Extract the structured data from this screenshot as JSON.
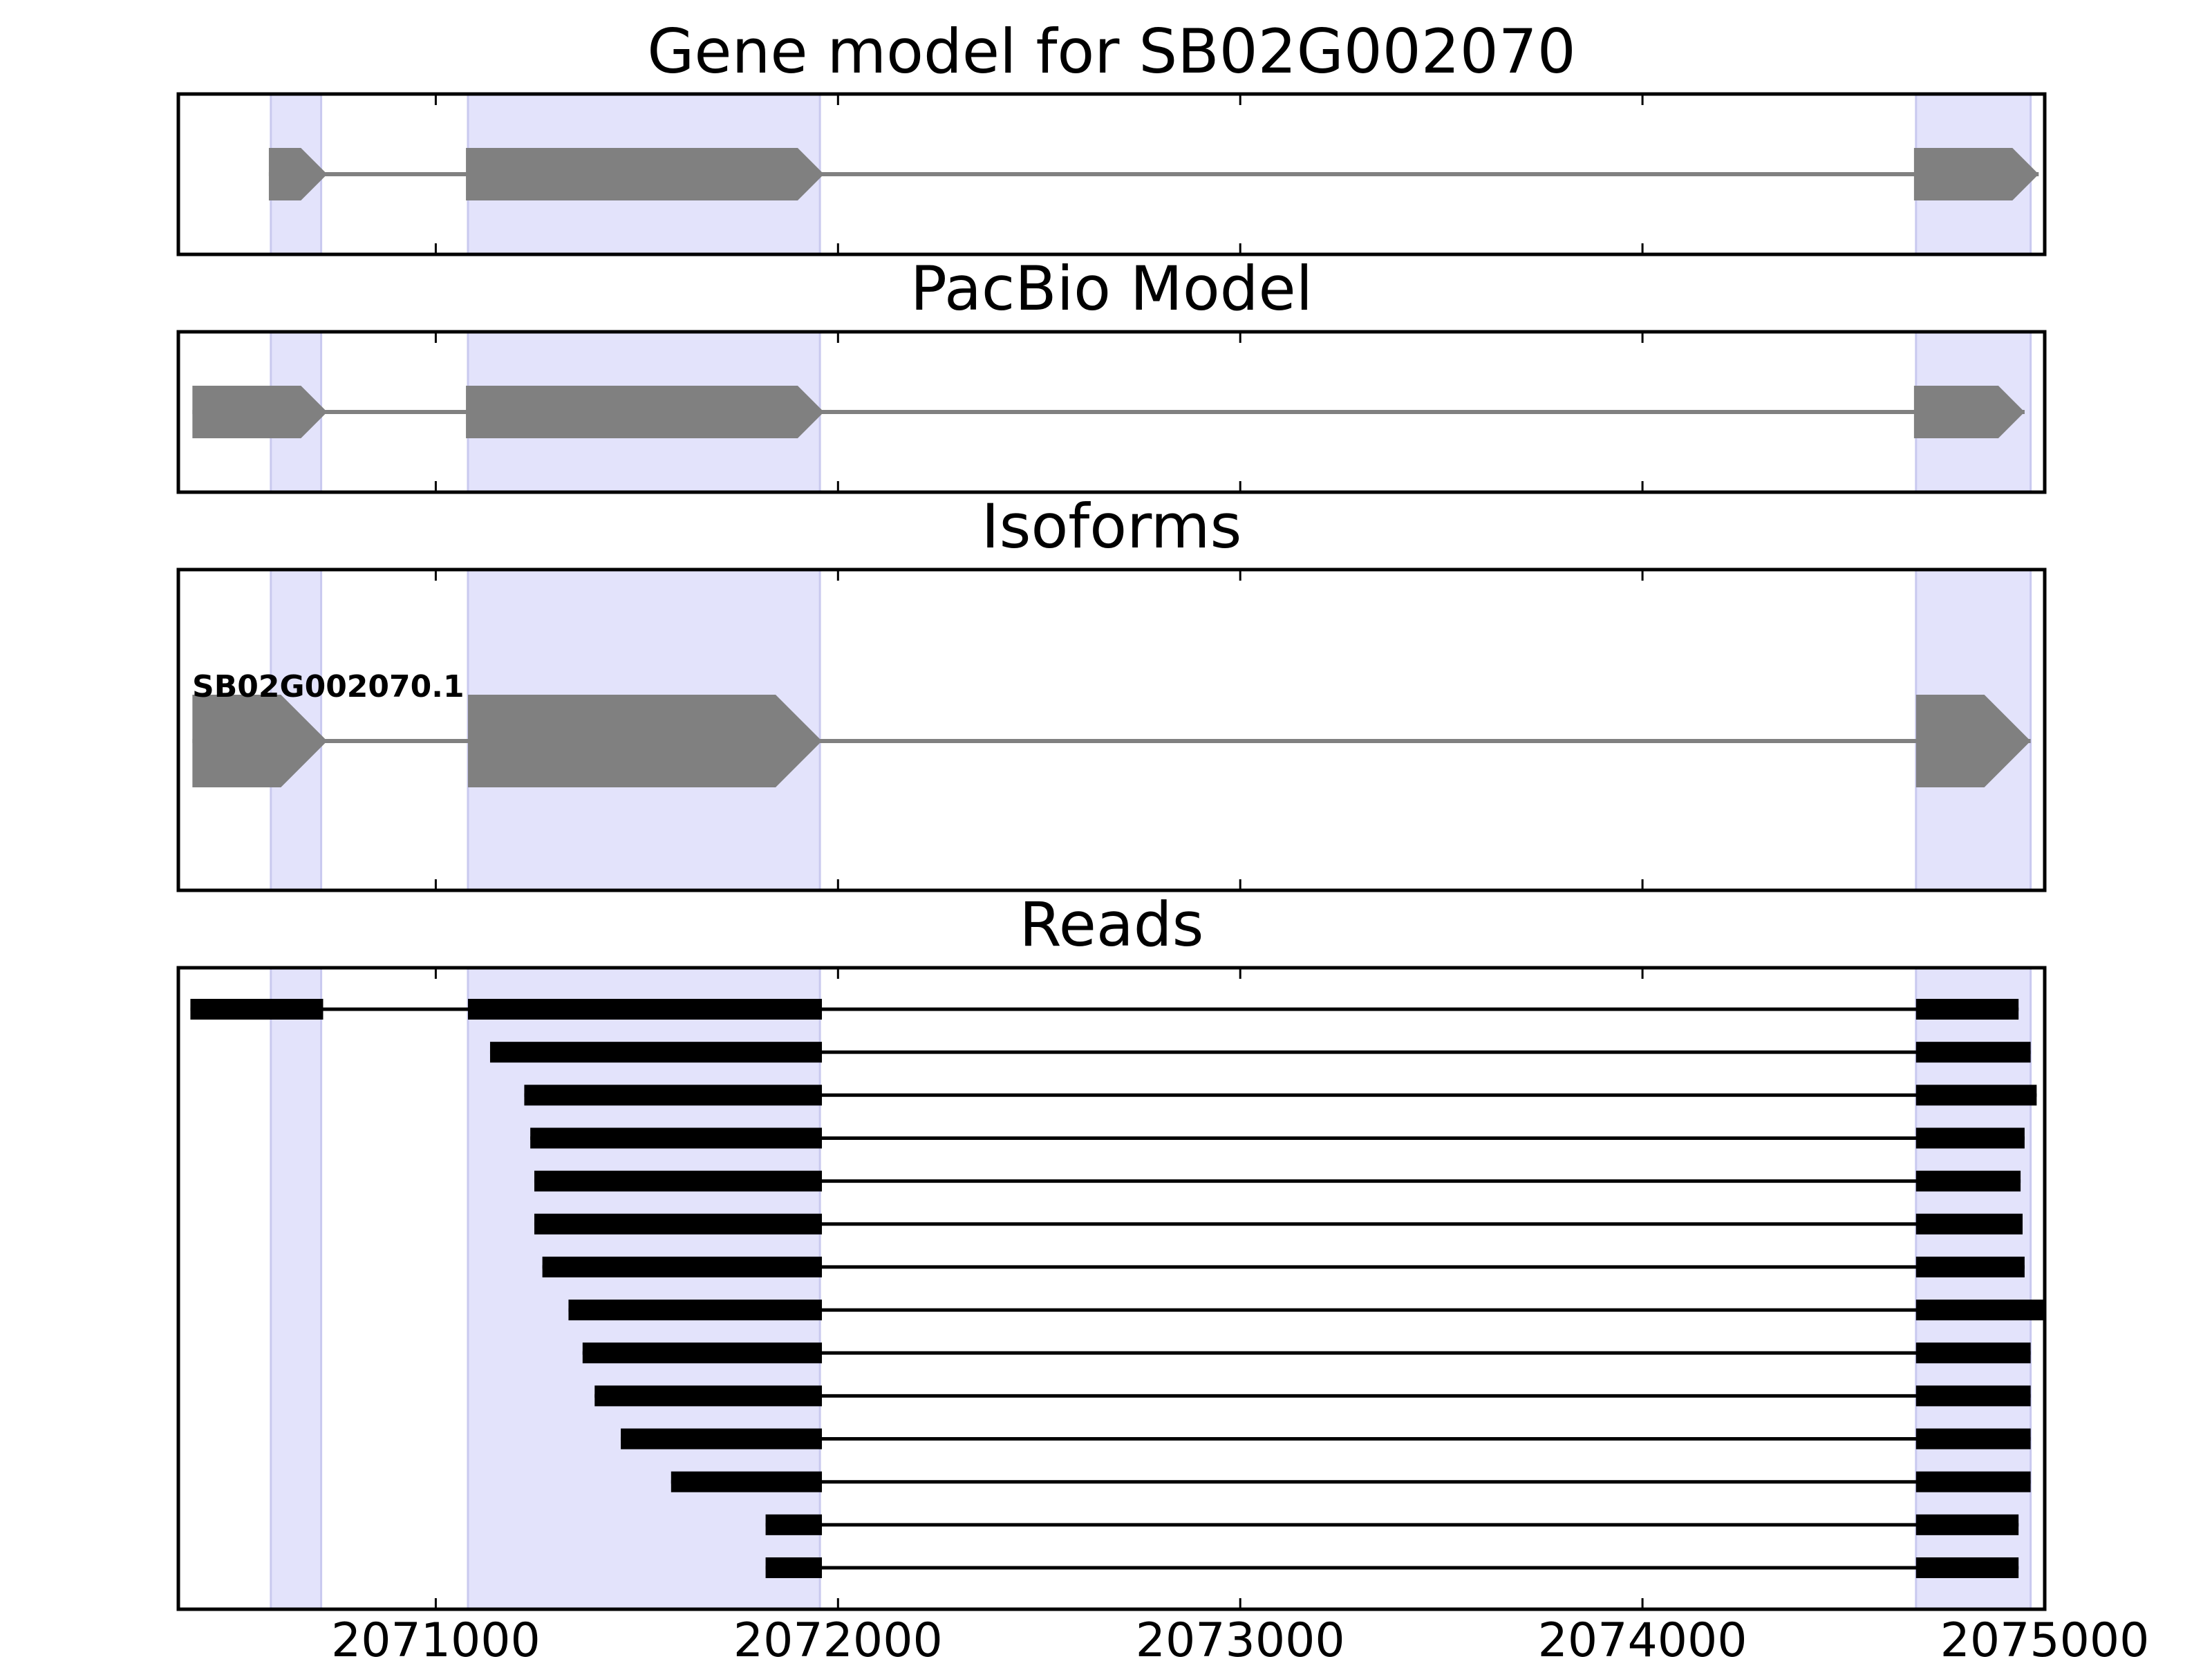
{
  "chart_data": {
    "type": "gene-structure",
    "xlim": [
      2070360,
      2075000
    ],
    "xticks": [
      2071000,
      2072000,
      2073000,
      2074000,
      2075000
    ],
    "xtick_labels": [
      "2071000",
      "2072000",
      "2073000",
      "2074000",
      "2075000"
    ],
    "highlight_regions": [
      [
        2070590,
        2070715
      ],
      [
        2071080,
        2071955
      ],
      [
        2074680,
        2074965
      ]
    ],
    "colors": {
      "highlight": "#e3e3fb",
      "highlight_edge": "#c9c9ef",
      "feature": "#808080",
      "intron": "#808080",
      "read": "#000000"
    },
    "panels": [
      {
        "title": "Gene model for SB02G002070",
        "exons": [
          [
            2070585,
            2070730
          ],
          [
            2071075,
            2071965
          ],
          [
            2074675,
            2074985
          ]
        ],
        "span": [
          2070585,
          2074985
        ]
      },
      {
        "title": "PacBio Model",
        "exons": [
          [
            2070395,
            2070730
          ],
          [
            2071075,
            2071965
          ],
          [
            2074675,
            2074950
          ]
        ],
        "span": [
          2070395,
          2074950
        ]
      },
      {
        "title": "Isoforms",
        "isoform_label": "SB02G002070.1",
        "exons": [
          [
            2070395,
            2070730
          ],
          [
            2071080,
            2071960
          ],
          [
            2074680,
            2074965
          ]
        ],
        "span": [
          2070395,
          2074965
        ]
      },
      {
        "title": "Reads",
        "reads": [
          [
            [
              2070390,
              2070720
            ],
            [
              2071080,
              2071960
            ],
            [
              2074680,
              2074935
            ]
          ],
          [
            [
              2071135,
              2071960
            ],
            [
              2074680,
              2074965
            ]
          ],
          [
            [
              2071220,
              2071960
            ],
            [
              2074680,
              2074980
            ]
          ],
          [
            [
              2071235,
              2071960
            ],
            [
              2074680,
              2074950
            ]
          ],
          [
            [
              2071245,
              2071960
            ],
            [
              2074680,
              2074940
            ]
          ],
          [
            [
              2071245,
              2071960
            ],
            [
              2074680,
              2074945
            ]
          ],
          [
            [
              2071265,
              2071960
            ],
            [
              2074680,
              2074950
            ]
          ],
          [
            [
              2071330,
              2071960
            ],
            [
              2074680,
              2075000
            ]
          ],
          [
            [
              2071365,
              2071960
            ],
            [
              2074680,
              2074965
            ]
          ],
          [
            [
              2071395,
              2071960
            ],
            [
              2074680,
              2074965
            ]
          ],
          [
            [
              2071460,
              2071960
            ],
            [
              2074680,
              2074965
            ]
          ],
          [
            [
              2071585,
              2071960
            ],
            [
              2074680,
              2074965
            ]
          ],
          [
            [
              2071820,
              2071960
            ],
            [
              2074680,
              2074935
            ]
          ],
          [
            [
              2071820,
              2071960
            ],
            [
              2074680,
              2074935
            ]
          ]
        ]
      }
    ]
  }
}
